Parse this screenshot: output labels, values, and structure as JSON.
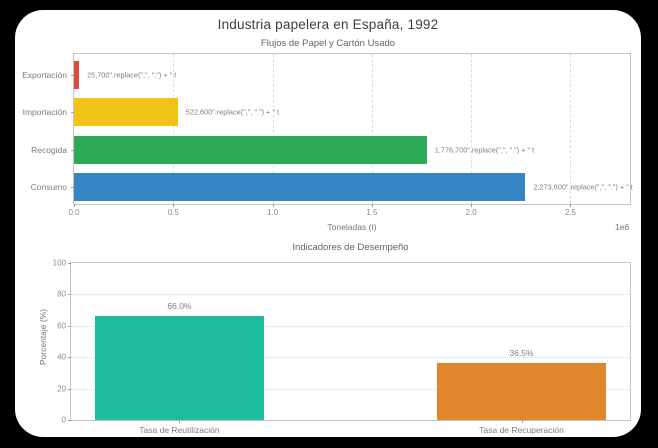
{
  "figure": {
    "title": "Industria papelera en España, 1992"
  },
  "chart_data": [
    {
      "type": "bar",
      "orientation": "horizontal",
      "title": "Flujos de Papel y Cartón Usado",
      "categories": [
        "Exportación",
        "Importación",
        "Recogida",
        "Consumo"
      ],
      "values": [
        25700,
        522600,
        1776700,
        2273600
      ],
      "bar_labels": [
        "25,700\".replace(\",\", \".\") + \" t",
        "522,600\".replace(\",\", \".\") + \" t",
        "1,776,700\".replace(\",\", \".\") + \" t",
        "2,273,600\".replace(\",\", \".\") + \" t"
      ],
      "bar_colors": [
        "#dd4b3e",
        "#f0c417",
        "#2eab57",
        "#3686c3"
      ],
      "xlabel": "Toneladas (t)",
      "xlim": [
        0,
        2800000
      ],
      "xtick_values": [
        0,
        500000,
        1000000,
        1500000,
        2000000,
        2500000
      ],
      "xtick_labels": [
        "0.0",
        "0.5",
        "1.0",
        "1.5",
        "2.0",
        "2.5"
      ],
      "offset_text": "1e6",
      "grid": "vertical-dashed",
      "legend": "none"
    },
    {
      "type": "bar",
      "orientation": "vertical",
      "title": "Indicadores de Desempeño",
      "categories": [
        "Tasa de Reutilización",
        "Tasa de Recuperación"
      ],
      "values": [
        66.0,
        36.5
      ],
      "bar_labels": [
        "66.0%",
        "36.5%"
      ],
      "bar_colors": [
        "#1dbc9e",
        "#e0862d"
      ],
      "ylabel": "Porcentaje (%)",
      "ylim": [
        0,
        100
      ],
      "ytick_values": [
        0,
        20,
        40,
        60,
        80,
        100
      ],
      "ytick_labels": [
        "0",
        "20",
        "40",
        "60",
        "80",
        "100"
      ],
      "grid": "horizontal-dotted",
      "legend": "none"
    }
  ],
  "style": {
    "background": "#000000",
    "card_background": "#ffffff",
    "spine_color": "#c6c6c6",
    "grid_color": "#dcdcdc",
    "title_color": "#3c4043",
    "text_color": "#7d7d7d"
  }
}
